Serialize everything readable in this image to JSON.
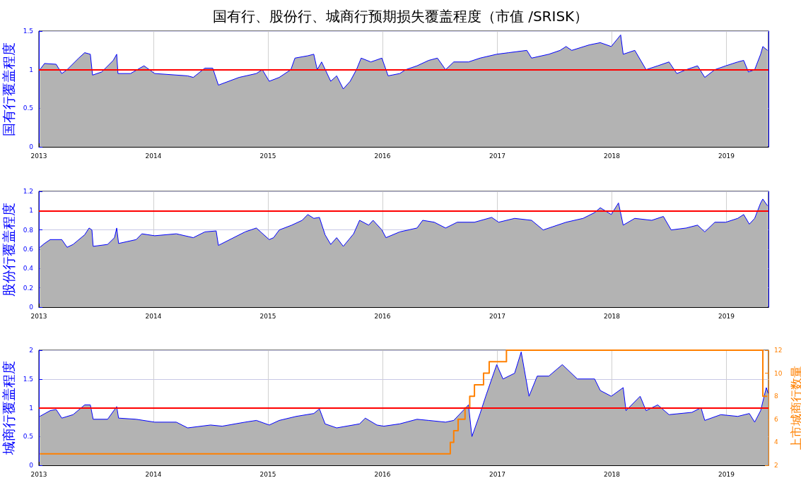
{
  "chart_data": [
    {
      "type": "area",
      "title": "国有行、股份行、城商行预期损失覆盖程度（市值 /SRISK）",
      "ylabel": "国有行覆盖程度",
      "xlim": [
        "2013-01-01",
        "2019-05-15"
      ],
      "xticks": [
        {
          "value": "2013-01-01",
          "label": "2013"
        },
        {
          "value": "2014-01-01",
          "label": "2014"
        },
        {
          "value": "2015-01-01",
          "label": "2015"
        },
        {
          "value": "2016-01-01",
          "label": "2016"
        },
        {
          "value": "2017-01-01",
          "label": "2017"
        },
        {
          "value": "2018-01-01",
          "label": "2018"
        },
        {
          "value": "2019-01-01",
          "label": "2019"
        }
      ],
      "ylim": [
        0,
        1.5
      ],
      "yticks": [
        0,
        0.5,
        1,
        1.5
      ],
      "grid": true,
      "ref_lines": [
        {
          "axis": "y",
          "value": 1,
          "color": "#ff0000"
        }
      ],
      "x": [
        "2013-01-04",
        "2013-01-19",
        "2013-02-25",
        "2013-03-15",
        "2013-04-01",
        "2013-05-08",
        "2013-05-27",
        "2013-06-14",
        "2013-06-21",
        "2013-07-20",
        "2013-08-26",
        "2013-09-06",
        "2013-09-10",
        "2013-10-20",
        "2013-12-02",
        "2014-01-05",
        "2014-04-20",
        "2014-05-08",
        "2014-06-14",
        "2014-07-09",
        "2014-07-27",
        "2014-10-01",
        "2014-11-25",
        "2014-12-14",
        "2015-01-05",
        "2015-02-06",
        "2015-03-15",
        "2015-03-28",
        "2015-05-08",
        "2015-05-27",
        "2015-06-07",
        "2015-06-21",
        "2015-07-20",
        "2015-08-08",
        "2015-08-29",
        "2015-09-20",
        "2015-10-10",
        "2015-10-25",
        "2015-11-25",
        "2015-12-30",
        "2016-01-19",
        "2016-02-25",
        "2016-03-15",
        "2016-04-20",
        "2016-05-27",
        "2016-06-24",
        "2016-07-20",
        "2016-08-15",
        "2016-10-01",
        "2016-11-07",
        "2016-12-30",
        "2017-02-06",
        "2017-04-05",
        "2017-04-20",
        "2017-06-14",
        "2017-07-20",
        "2017-08-08",
        "2017-08-26",
        "2017-10-20",
        "2017-11-25",
        "2017-12-30",
        "2018-01-29",
        "2018-02-06",
        "2018-03-15",
        "2018-04-20",
        "2018-05-27",
        "2018-07-02",
        "2018-07-27",
        "2018-08-26",
        "2018-10-01",
        "2018-10-24",
        "2018-11-25",
        "2018-12-30",
        "2019-02-06",
        "2019-02-25",
        "2019-03-12",
        "2019-04-01",
        "2019-04-20",
        "2019-04-27",
        "2019-05-12"
      ],
      "series": [
        {
          "color": "#b3b3b3",
          "values": [
            1.0,
            1.08,
            1.07,
            0.95,
            1.0,
            1.15,
            1.22,
            1.2,
            0.93,
            0.97,
            1.12,
            1.2,
            0.95,
            0.95,
            1.05,
            0.95,
            0.92,
            0.9,
            1.02,
            1.02,
            0.8,
            0.9,
            0.95,
            1.0,
            0.85,
            0.9,
            1.0,
            1.15,
            1.18,
            1.2,
            1.0,
            1.1,
            0.85,
            0.92,
            0.75,
            0.85,
            1.0,
            1.15,
            1.1,
            1.15,
            0.92,
            0.95,
            1.0,
            1.05,
            1.12,
            1.15,
            1.0,
            1.1,
            1.1,
            1.15,
            1.2,
            1.22,
            1.25,
            1.15,
            1.2,
            1.25,
            1.3,
            1.25,
            1.32,
            1.35,
            1.3,
            1.45,
            1.2,
            1.25,
            1.0,
            1.05,
            1.1,
            0.95,
            1.0,
            1.05,
            0.9,
            1.0,
            1.05,
            1.1,
            1.12,
            0.97,
            1.0,
            1.2,
            1.3,
            1.25
          ]
        }
      ]
    },
    {
      "type": "area",
      "ylabel": "股份行覆盖程度",
      "xlim": [
        "2013-01-01",
        "2019-05-15"
      ],
      "xticks": [
        {
          "value": "2013-01-01",
          "label": "2013"
        },
        {
          "value": "2014-01-01",
          "label": "2014"
        },
        {
          "value": "2015-01-01",
          "label": "2015"
        },
        {
          "value": "2016-01-01",
          "label": "2016"
        },
        {
          "value": "2017-01-01",
          "label": "2017"
        },
        {
          "value": "2018-01-01",
          "label": "2018"
        },
        {
          "value": "2019-01-01",
          "label": "2019"
        }
      ],
      "ylim": [
        0,
        1.2
      ],
      "yticks": [
        0,
        0.2,
        0.4,
        0.6,
        0.8,
        1,
        1.2
      ],
      "grid": true,
      "ref_lines": [
        {
          "axis": "y",
          "value": 1,
          "color": "#ff0000"
        }
      ],
      "x": [
        "2013-01-04",
        "2013-01-19",
        "2013-02-06",
        "2013-03-15",
        "2013-04-01",
        "2013-04-20",
        "2013-05-27",
        "2013-06-10",
        "2013-06-19",
        "2013-06-23",
        "2013-08-08",
        "2013-08-30",
        "2013-09-06",
        "2013-09-12",
        "2013-11-07",
        "2013-11-25",
        "2014-01-05",
        "2014-03-15",
        "2014-05-08",
        "2014-06-14",
        "2014-07-20",
        "2014-07-27",
        "2014-10-20",
        "2014-11-25",
        "2015-01-05",
        "2015-01-19",
        "2015-02-06",
        "2015-03-18",
        "2015-04-20",
        "2015-05-08",
        "2015-05-27",
        "2015-06-14",
        "2015-07-02",
        "2015-07-20",
        "2015-08-08",
        "2015-08-29",
        "2015-10-01",
        "2015-10-20",
        "2015-11-18",
        "2015-12-02",
        "2015-12-30",
        "2016-01-12",
        "2016-02-25",
        "2016-04-20",
        "2016-05-08",
        "2016-06-14",
        "2016-07-20",
        "2016-08-26",
        "2016-10-20",
        "2016-12-14",
        "2017-01-05",
        "2017-02-25",
        "2017-04-20",
        "2017-05-27",
        "2017-08-08",
        "2017-10-01",
        "2017-11-07",
        "2017-11-25",
        "2017-12-30",
        "2018-01-22",
        "2018-02-06",
        "2018-03-15",
        "2018-05-08",
        "2018-06-14",
        "2018-07-09",
        "2018-08-26",
        "2018-10-01",
        "2018-10-24",
        "2018-11-25",
        "2018-12-30",
        "2019-02-06",
        "2019-02-25",
        "2019-03-15",
        "2019-04-01",
        "2019-04-20",
        "2019-04-27",
        "2019-05-12"
      ],
      "series": [
        {
          "color": "#b3b3b3",
          "values": [
            0.62,
            0.66,
            0.7,
            0.7,
            0.62,
            0.65,
            0.75,
            0.82,
            0.8,
            0.63,
            0.65,
            0.72,
            0.82,
            0.66,
            0.7,
            0.76,
            0.74,
            0.76,
            0.72,
            0.78,
            0.79,
            0.64,
            0.78,
            0.82,
            0.7,
            0.72,
            0.8,
            0.85,
            0.9,
            0.96,
            0.92,
            0.93,
            0.75,
            0.65,
            0.72,
            0.63,
            0.76,
            0.9,
            0.85,
            0.9,
            0.8,
            0.72,
            0.78,
            0.82,
            0.9,
            0.88,
            0.82,
            0.88,
            0.88,
            0.93,
            0.88,
            0.92,
            0.9,
            0.8,
            0.88,
            0.92,
            0.98,
            1.03,
            0.96,
            1.08,
            0.85,
            0.92,
            0.9,
            0.94,
            0.8,
            0.82,
            0.85,
            0.78,
            0.88,
            0.88,
            0.92,
            0.96,
            0.86,
            0.92,
            1.08,
            1.12,
            1.05
          ]
        }
      ]
    },
    {
      "type": "area",
      "ylabel": "城商行覆盖程度",
      "y2label": "上市城商行数量",
      "xlim": [
        "2013-01-01",
        "2019-05-15"
      ],
      "xticks": [
        {
          "value": "2013-01-01",
          "label": "2013"
        },
        {
          "value": "2014-01-01",
          "label": "2014"
        },
        {
          "value": "2015-01-01",
          "label": "2015"
        },
        {
          "value": "2016-01-01",
          "label": "2016"
        },
        {
          "value": "2017-01-01",
          "label": "2017"
        },
        {
          "value": "2018-01-01",
          "label": "2018"
        },
        {
          "value": "2019-01-01",
          "label": "2019"
        }
      ],
      "ylim": [
        0,
        2
      ],
      "yticks": [
        0,
        0.5,
        1,
        1.5,
        2
      ],
      "y2lim": [
        2,
        12
      ],
      "y2ticks": [
        2,
        4,
        6,
        8,
        10,
        12
      ],
      "grid": true,
      "ref_lines": [
        {
          "axis": "y",
          "value": 1,
          "color": "#ff0000"
        }
      ],
      "x": [
        "2013-01-04",
        "2013-02-06",
        "2013-02-25",
        "2013-03-15",
        "2013-04-20",
        "2013-05-27",
        "2013-06-14",
        "2013-06-23",
        "2013-08-08",
        "2013-09-06",
        "2013-09-12",
        "2013-11-07",
        "2014-01-05",
        "2014-03-15",
        "2014-04-20",
        "2014-07-02",
        "2014-08-08",
        "2014-10-20",
        "2014-11-25",
        "2015-01-05",
        "2015-02-06",
        "2015-04-01",
        "2015-05-27",
        "2015-06-14",
        "2015-07-02",
        "2015-08-08",
        "2015-10-20",
        "2015-11-07",
        "2015-12-14",
        "2016-01-05",
        "2016-02-25",
        "2016-04-20",
        "2016-05-27",
        "2016-07-20",
        "2016-08-15",
        "2016-10-01",
        "2016-10-12",
        "2016-11-07",
        "2016-11-25",
        "2016-12-14",
        "2016-12-30",
        "2017-01-19",
        "2017-02-25",
        "2017-03-18",
        "2017-04-12",
        "2017-05-08",
        "2017-06-14",
        "2017-07-27",
        "2017-09-13",
        "2017-11-07",
        "2017-11-25",
        "2017-12-30",
        "2018-02-06",
        "2018-02-15",
        "2018-04-01",
        "2018-04-20",
        "2018-05-27",
        "2018-07-02",
        "2018-09-13",
        "2018-10-12",
        "2018-10-24",
        "2018-12-14",
        "2019-02-06",
        "2019-03-15",
        "2019-04-01",
        "2019-04-20",
        "2019-05-08",
        "2019-05-14"
      ],
      "series": [
        {
          "color": "#b3b3b3",
          "values": [
            0.85,
            0.95,
            0.97,
            0.82,
            0.88,
            1.05,
            1.05,
            0.8,
            0.8,
            1.02,
            0.82,
            0.8,
            0.75,
            0.75,
            0.65,
            0.7,
            0.68,
            0.75,
            0.78,
            0.7,
            0.78,
            0.85,
            0.9,
            0.98,
            0.72,
            0.65,
            0.72,
            0.82,
            0.7,
            0.68,
            0.72,
            0.8,
            0.78,
            0.75,
            0.78,
            1.05,
            0.5,
            0.9,
            1.2,
            1.5,
            1.75,
            1.5,
            1.6,
            1.97,
            1.2,
            1.55,
            1.55,
            1.75,
            1.5,
            1.5,
            1.3,
            1.2,
            1.35,
            0.95,
            1.2,
            0.95,
            1.05,
            0.88,
            0.92,
            1.0,
            0.78,
            0.88,
            0.85,
            0.9,
            0.75,
            0.95,
            1.35,
            1.25
          ]
        },
        {
          "type": "step",
          "axis": "y2",
          "color": "#ff8000",
          "x": [
            "2013-01-04",
            "2016-08-04",
            "2016-08-15",
            "2016-08-29",
            "2016-09-20",
            "2016-10-05",
            "2016-10-20",
            "2016-11-18",
            "2016-12-06",
            "2017-01-30",
            "2019-04-27",
            "2019-05-11"
          ],
          "values": [
            3,
            4,
            5,
            6,
            7,
            8,
            9,
            10,
            11,
            12,
            8,
            8
          ]
        }
      ]
    }
  ]
}
